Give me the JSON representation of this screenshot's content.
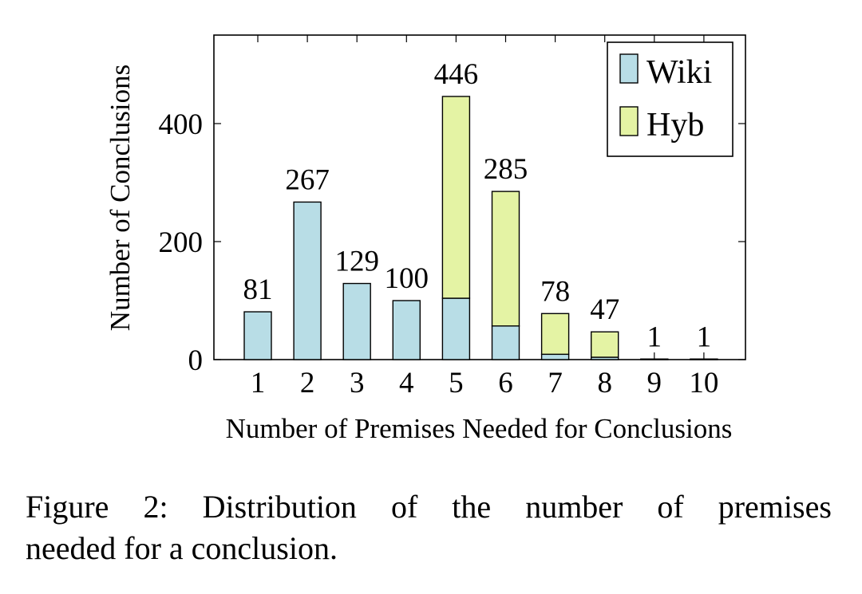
{
  "chart_data": {
    "type": "bar",
    "stacked": true,
    "categories": [
      "1",
      "2",
      "3",
      "4",
      "5",
      "6",
      "7",
      "8",
      "9",
      "10"
    ],
    "series": [
      {
        "name": "Wiki",
        "values": [
          81,
          267,
          129,
          100,
          104,
          57,
          9,
          4,
          1,
          1
        ],
        "color": "#b8dde6"
      },
      {
        "name": "Hyb",
        "values": [
          0,
          0,
          0,
          0,
          342,
          228,
          69,
          43,
          0,
          0
        ],
        "color": "#e4f3a4"
      }
    ],
    "totals": [
      81,
      267,
      129,
      100,
      446,
      285,
      78,
      47,
      1,
      1
    ],
    "xlabel": "Number of Premises Needed for Conclusions",
    "ylabel": "Number of Conclusions",
    "ylim": [
      0,
      550
    ],
    "yticks": [
      0,
      200,
      400
    ],
    "grid": false,
    "legend": "top-right"
  },
  "caption": {
    "words_line1": [
      "Figure",
      "2:",
      "Distribution",
      "of",
      "the",
      "number",
      "of",
      "premises"
    ],
    "line2": "needed for a conclusion."
  }
}
